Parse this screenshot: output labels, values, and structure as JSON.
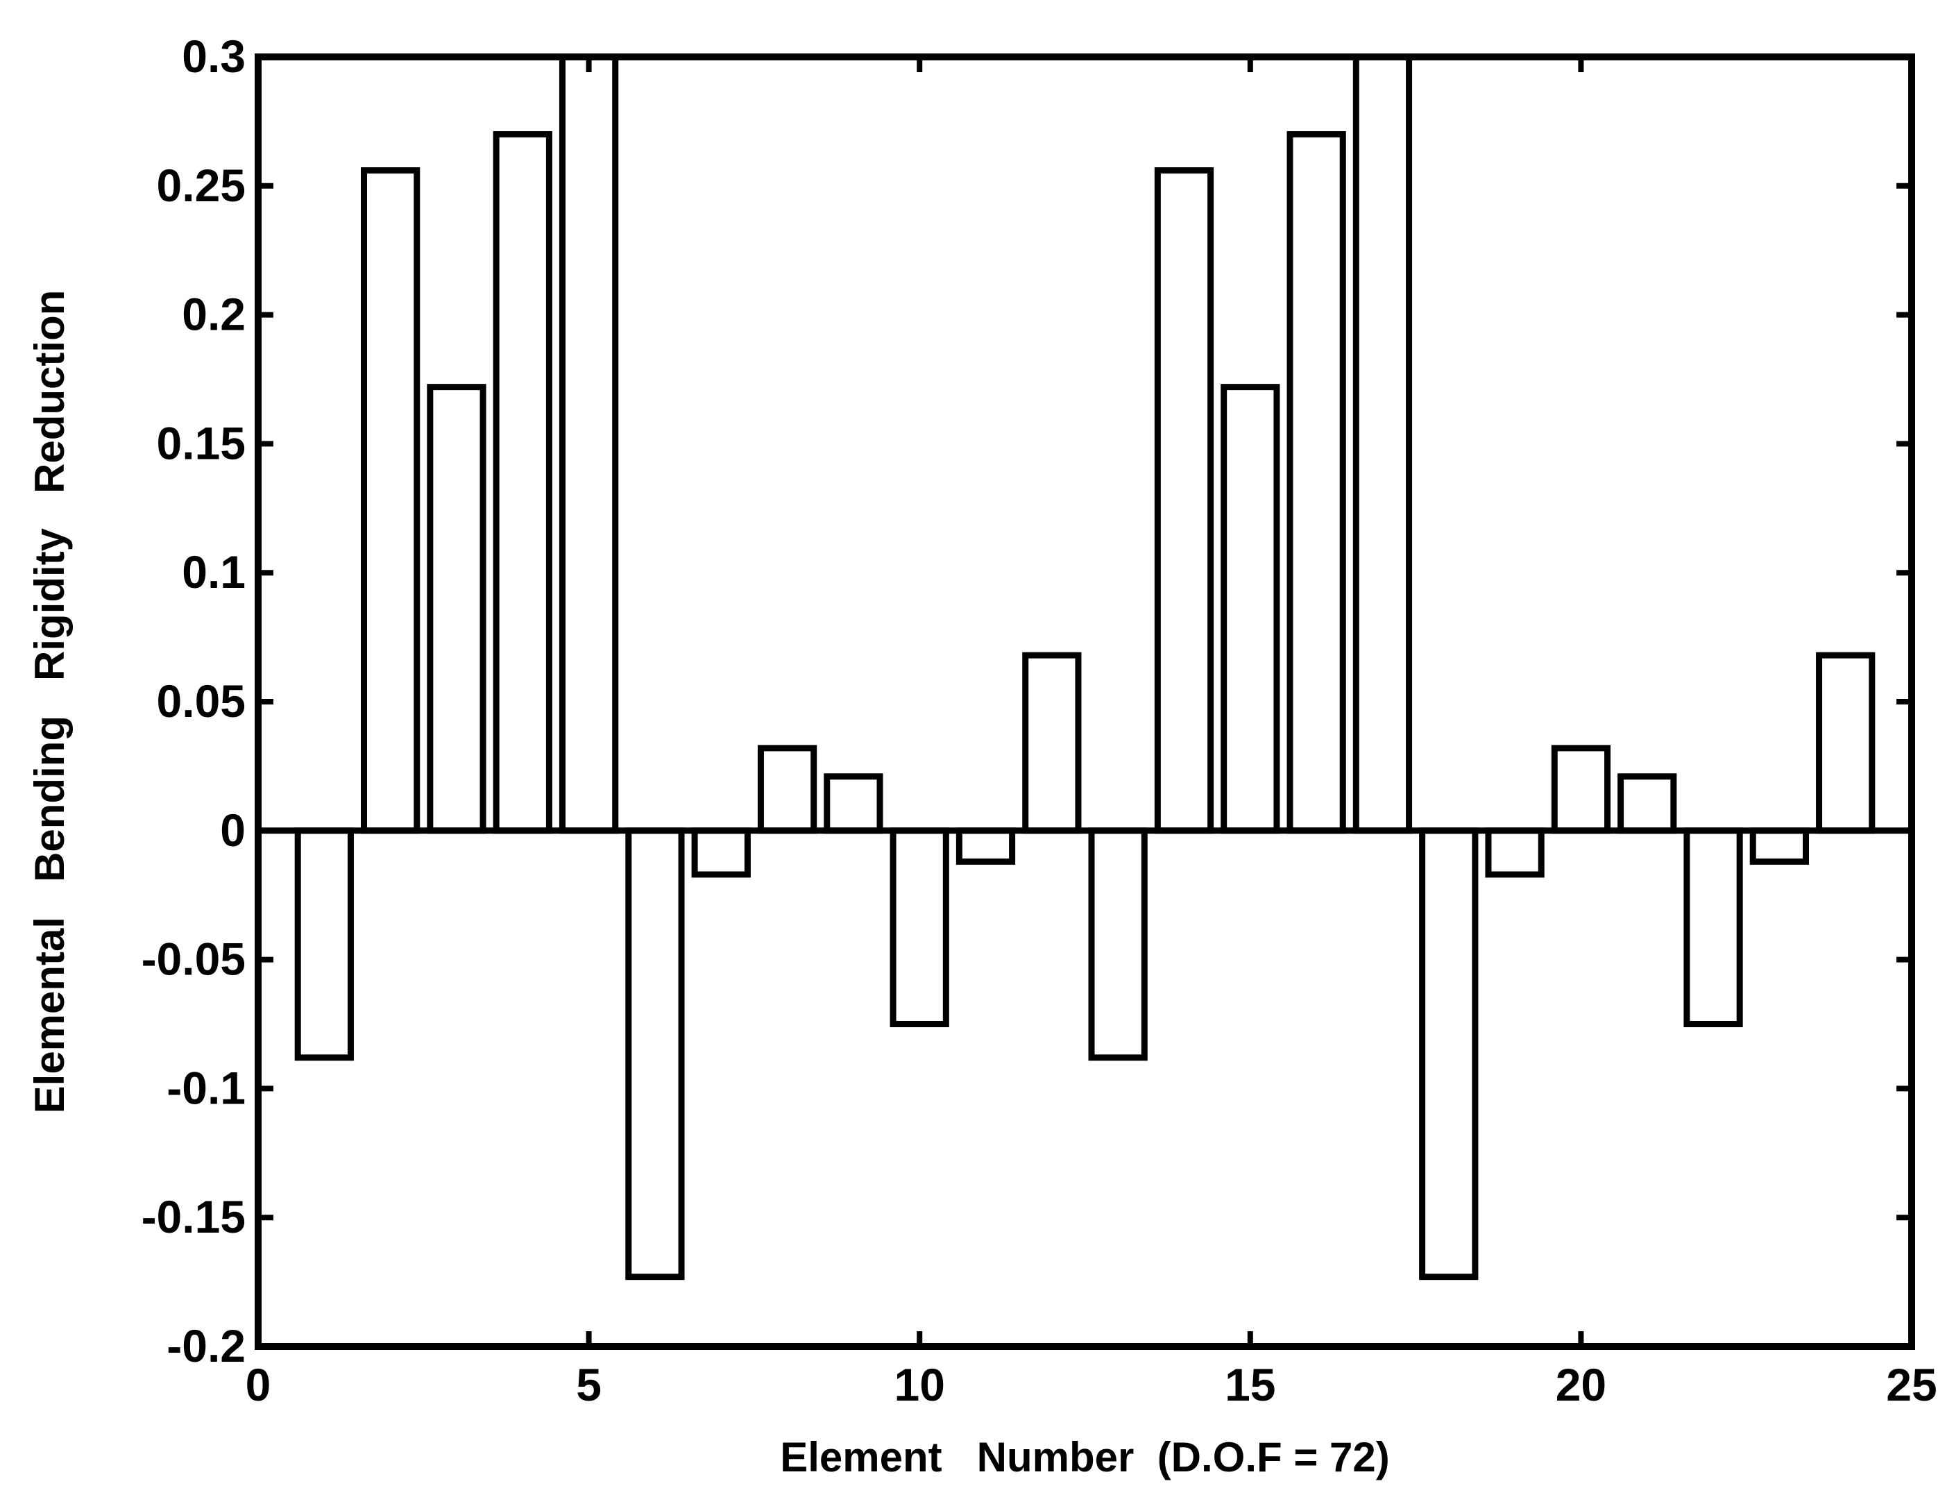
{
  "chart_data": {
    "type": "bar",
    "title": "",
    "xlabel": "Element   Number  (D.O.F = 72)",
    "ylabel": "Elemental   Bending   Rigidity   Reduction",
    "xlim": [
      0,
      25
    ],
    "ylim": [
      -0.2,
      0.3
    ],
    "xticks": [
      0,
      5,
      10,
      15,
      20,
      25
    ],
    "xtick_labels": [
      "0",
      "5",
      "10",
      "15",
      "20",
      "25"
    ],
    "yticks": [
      0.3,
      0.25,
      0.2,
      0.15,
      0.1,
      0.05,
      0,
      -0.05,
      -0.1,
      -0.15,
      -0.2
    ],
    "ytick_labels": [
      "0.3",
      "0.25",
      "0.2",
      "0.15",
      "0.1",
      "0.05",
      "0",
      "-0.05",
      "-0.1",
      "-0.15",
      "-0.2"
    ],
    "grid": false,
    "colors": {
      "bar_fill": "#ffffff",
      "bar_edge": "#000000",
      "axes": "#000000"
    },
    "x": [
      1,
      2,
      3,
      4,
      5,
      6,
      7,
      8,
      9,
      10,
      11,
      12,
      13,
      14,
      15,
      16,
      17,
      18,
      19,
      20,
      21,
      22,
      23,
      24
    ],
    "values": [
      -0.088,
      0.256,
      0.172,
      0.27,
      0.3,
      -0.173,
      -0.017,
      0.032,
      0.021,
      -0.075,
      -0.012,
      0.068,
      -0.088,
      0.256,
      0.172,
      0.27,
      0.3,
      -0.173,
      -0.017,
      0.032,
      0.021,
      -0.075,
      -0.012,
      0.068
    ]
  }
}
